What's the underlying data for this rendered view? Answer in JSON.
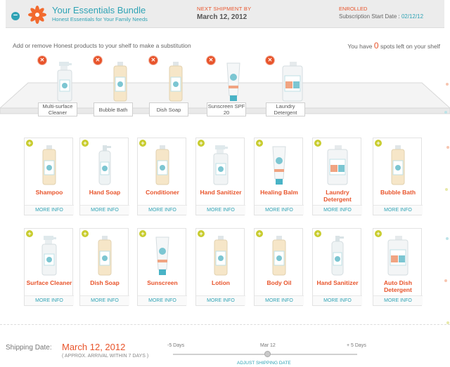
{
  "header": {
    "collapse_symbol": "−",
    "title": "Your Essentials Bundle",
    "subtitle": "Honest Essentials for Your Family Needs",
    "next_label": "NEXT SHIPMENT BY",
    "next_date": "March 12, 2012",
    "status": "ENROLLED",
    "start_label": "Subscription Start Date : ",
    "start_date": "02/12/12",
    "accent_color": "#2fa3b5",
    "brand_color": "#e8542b"
  },
  "instruction": "Add or remove Honest products to your shelf to make a substitution",
  "spots": {
    "prefix": "You have ",
    "count": "0",
    "suffix": " spots left on your shelf"
  },
  "shelf": [
    {
      "label": "Multi-surface Cleaner",
      "icon": "spray-bottle-icon"
    },
    {
      "label": "Bubble Bath",
      "icon": "bottle-icon"
    },
    {
      "label": "Dish Soap",
      "icon": "bottle-icon"
    },
    {
      "label": "Sunscreen SPF 20",
      "icon": "tube-icon"
    },
    {
      "label": "Laundry Detergent",
      "icon": "jug-icon"
    }
  ],
  "remove_symbol": "✕",
  "add_symbol": "+",
  "more_info": "MORE INFO",
  "products_row1": [
    {
      "name": "Shampoo",
      "icon": "bottle-icon"
    },
    {
      "name": "Hand Soap",
      "icon": "pump-bottle-icon"
    },
    {
      "name": "Conditioner",
      "icon": "bottle-icon"
    },
    {
      "name": "Hand Sanitizer",
      "icon": "spray-bottle-icon"
    },
    {
      "name": "Healing Balm",
      "icon": "tube-icon"
    },
    {
      "name": "Laundry Detergent",
      "icon": "jug-icon"
    },
    {
      "name": "Bubble Bath",
      "icon": "bottle-icon"
    }
  ],
  "products_row2": [
    {
      "name": "Surface Cleaner",
      "icon": "spray-bottle-icon"
    },
    {
      "name": "Dish Soap",
      "icon": "bottle-icon"
    },
    {
      "name": "Sunscreen",
      "icon": "tube-icon"
    },
    {
      "name": "Lotion",
      "icon": "bottle-icon"
    },
    {
      "name": "Body Oil",
      "icon": "bottle-icon"
    },
    {
      "name": "Hand Sanitizer",
      "icon": "pump-bottle-icon"
    },
    {
      "name": "Auto Dish Detergent",
      "icon": "jug-icon"
    }
  ],
  "footer": {
    "shipping_label": "Shipping Date:",
    "shipping_date": "March 12, 2012",
    "approx": "( APPROX. ARRIVAL WITHIN 7 DAYS )",
    "slider_min": "-5 Days",
    "slider_mid": "Mar 12",
    "slider_max": "+ 5 Days",
    "adjust": "ADJUST SHIPPING DATE"
  }
}
